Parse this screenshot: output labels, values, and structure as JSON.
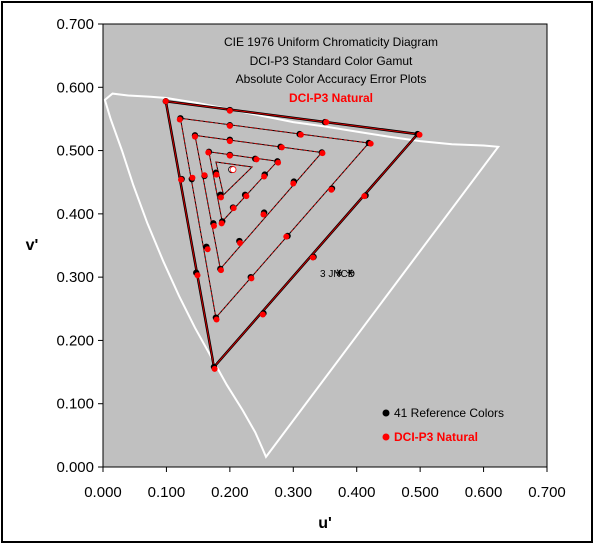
{
  "chart_data": {
    "type": "scatter",
    "title_lines": [
      "CIE 1976 Uniform Chromaticity Diagram",
      "DCI-P3 Standard Color Gamut",
      "Absolute Color Accuracy Error Plots"
    ],
    "subtitle": "DCI-P3 Natural",
    "xlabel": "u'",
    "ylabel": "v'",
    "xlim": [
      0.0,
      0.7
    ],
    "ylim": [
      0.0,
      0.7
    ],
    "xticks": [
      "0.000",
      "0.100",
      "0.200",
      "0.300",
      "0.400",
      "0.500",
      "0.600",
      "0.700"
    ],
    "yticks": [
      "0.000",
      "0.100",
      "0.200",
      "0.300",
      "0.400",
      "0.500",
      "0.600",
      "0.700"
    ],
    "grid": false,
    "plot_background": "#c0c0c0",
    "legend": {
      "position": "bottom-right",
      "entries": [
        {
          "label": "41 Reference Colors",
          "color": "#000000"
        },
        {
          "label": "DCI-P3 Natural",
          "color": "#ff0000"
        }
      ]
    },
    "annotation": {
      "text": "3 JNCD",
      "u": 0.356,
      "v": 0.307,
      "marker_u": [
        0.372,
        0.39
      ]
    },
    "spectral_locus": [
      [
        0.257,
        0.016
      ],
      [
        0.251,
        0.03
      ],
      [
        0.24,
        0.055
      ],
      [
        0.22,
        0.09
      ],
      [
        0.195,
        0.13
      ],
      [
        0.17,
        0.175
      ],
      [
        0.145,
        0.22
      ],
      [
        0.12,
        0.27
      ],
      [
        0.095,
        0.325
      ],
      [
        0.07,
        0.385
      ],
      [
        0.048,
        0.445
      ],
      [
        0.03,
        0.5
      ],
      [
        0.012,
        0.55
      ],
      [
        0.003,
        0.58
      ],
      [
        0.015,
        0.59
      ],
      [
        0.04,
        0.587
      ],
      [
        0.075,
        0.585
      ],
      [
        0.1,
        0.583
      ],
      [
        0.15,
        0.575
      ],
      [
        0.2,
        0.565
      ],
      [
        0.25,
        0.555
      ],
      [
        0.3,
        0.545
      ],
      [
        0.35,
        0.538
      ],
      [
        0.4,
        0.53
      ],
      [
        0.45,
        0.522
      ],
      [
        0.5,
        0.515
      ],
      [
        0.55,
        0.51
      ],
      [
        0.6,
        0.508
      ],
      [
        0.623,
        0.506
      ]
    ],
    "gamut_triangles": [
      {
        "level": 1.0,
        "vertices": [
          [
            0.099,
            0.578
          ],
          [
            0.496,
            0.526
          ],
          [
            0.175,
            0.158
          ]
        ]
      },
      {
        "level": 0.8,
        "vertices": [
          [
            0.122,
            0.551
          ],
          [
            0.419,
            0.512
          ],
          [
            0.178,
            0.236
          ]
        ]
      },
      {
        "level": 0.6,
        "vertices": [
          [
            0.145,
            0.524
          ],
          [
            0.345,
            0.497
          ],
          [
            0.185,
            0.313
          ]
        ]
      },
      {
        "level": 0.4,
        "vertices": [
          [
            0.167,
            0.498
          ],
          [
            0.275,
            0.483
          ],
          [
            0.188,
            0.388
          ]
        ]
      },
      {
        "level": 0.2,
        "vertices": [
          [
            0.178,
            0.482
          ],
          [
            0.235,
            0.474
          ],
          [
            0.19,
            0.43
          ]
        ]
      }
    ],
    "series": [
      {
        "name": "41 Reference Colors",
        "color": "#000000",
        "points": [
          [
            0.099,
            0.578
          ],
          [
            0.2,
            0.564
          ],
          [
            0.35,
            0.545
          ],
          [
            0.496,
            0.526
          ],
          [
            0.414,
            0.429
          ],
          [
            0.332,
            0.332
          ],
          [
            0.253,
            0.243
          ],
          [
            0.175,
            0.158
          ],
          [
            0.147,
            0.307
          ],
          [
            0.124,
            0.455
          ],
          [
            0.122,
            0.551
          ],
          [
            0.2,
            0.54
          ],
          [
            0.31,
            0.526
          ],
          [
            0.419,
            0.512
          ],
          [
            0.361,
            0.44
          ],
          [
            0.291,
            0.365
          ],
          [
            0.233,
            0.3
          ],
          [
            0.178,
            0.236
          ],
          [
            0.163,
            0.348
          ],
          [
            0.14,
            0.455
          ],
          [
            0.145,
            0.524
          ],
          [
            0.2,
            0.517
          ],
          [
            0.28,
            0.506
          ],
          [
            0.345,
            0.497
          ],
          [
            0.301,
            0.451
          ],
          [
            0.254,
            0.402
          ],
          [
            0.215,
            0.357
          ],
          [
            0.185,
            0.313
          ],
          [
            0.174,
            0.385
          ],
          [
            0.16,
            0.46
          ],
          [
            0.167,
            0.498
          ],
          [
            0.2,
            0.493
          ],
          [
            0.24,
            0.487
          ],
          [
            0.275,
            0.483
          ],
          [
            0.255,
            0.462
          ],
          [
            0.224,
            0.43
          ],
          [
            0.205,
            0.41
          ],
          [
            0.188,
            0.388
          ],
          [
            0.185,
            0.43
          ],
          [
            0.178,
            0.465
          ],
          [
            0.203,
            0.47
          ]
        ]
      },
      {
        "name": "DCI-P3 Natural",
        "color": "#ff0000",
        "points": [
          [
            0.099,
            0.578
          ],
          [
            0.2,
            0.563
          ],
          [
            0.352,
            0.545
          ],
          [
            0.499,
            0.525
          ],
          [
            0.412,
            0.428
          ],
          [
            0.331,
            0.331
          ],
          [
            0.252,
            0.241
          ],
          [
            0.176,
            0.155
          ],
          [
            0.149,
            0.303
          ],
          [
            0.123,
            0.454
          ],
          [
            0.121,
            0.549
          ],
          [
            0.2,
            0.539
          ],
          [
            0.312,
            0.525
          ],
          [
            0.422,
            0.511
          ],
          [
            0.36,
            0.438
          ],
          [
            0.289,
            0.364
          ],
          [
            0.234,
            0.298
          ],
          [
            0.179,
            0.233
          ],
          [
            0.165,
            0.344
          ],
          [
            0.141,
            0.457
          ],
          [
            0.145,
            0.522
          ],
          [
            0.2,
            0.515
          ],
          [
            0.282,
            0.505
          ],
          [
            0.346,
            0.496
          ],
          [
            0.3,
            0.448
          ],
          [
            0.253,
            0.399
          ],
          [
            0.216,
            0.354
          ],
          [
            0.186,
            0.311
          ],
          [
            0.175,
            0.381
          ],
          [
            0.16,
            0.461
          ],
          [
            0.166,
            0.497
          ],
          [
            0.2,
            0.492
          ],
          [
            0.242,
            0.486
          ],
          [
            0.276,
            0.481
          ],
          [
            0.254,
            0.459
          ],
          [
            0.226,
            0.428
          ],
          [
            0.206,
            0.409
          ],
          [
            0.187,
            0.385
          ],
          [
            0.186,
            0.426
          ],
          [
            0.179,
            0.462
          ],
          [
            0.205,
            0.47
          ]
        ]
      }
    ]
  }
}
